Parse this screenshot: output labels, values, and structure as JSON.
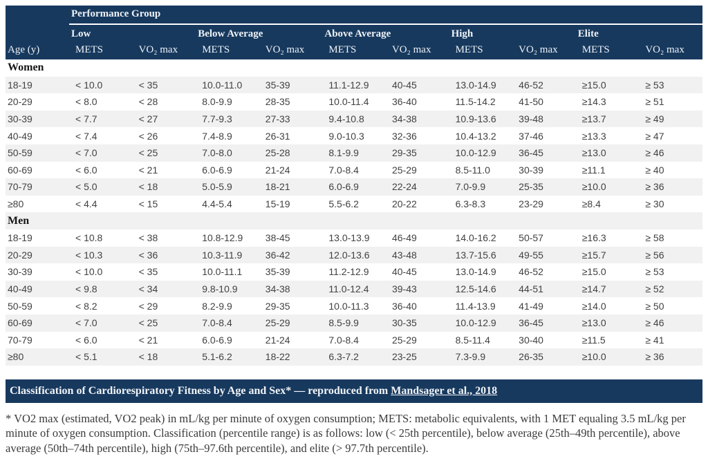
{
  "colors": {
    "navy": "#17395E",
    "stripe_gray": "#f1f1f1",
    "cell_text": "#414141"
  },
  "table": {
    "group_header": "Performance Group",
    "age_header": "Age (y)",
    "mets_label": "METS",
    "vo2_label": "VO₂ max",
    "groups": [
      {
        "label": "Low"
      },
      {
        "label": "Below Average"
      },
      {
        "label": "Above Average"
      },
      {
        "label": "High"
      },
      {
        "label": "Elite"
      }
    ],
    "sections": [
      {
        "title": "Women",
        "rows": [
          {
            "age": "18-19",
            "cells": [
              "< 10.0",
              "< 35",
              "10.0-11.0",
              "35-39",
              "11.1-12.9",
              "40-45",
              "13.0-14.9",
              "46-52",
              "≥15.0",
              "≥ 53"
            ]
          },
          {
            "age": "20-29",
            "cells": [
              "< 8.0",
              "< 28",
              "8.0-9.9",
              "28-35",
              "10.0-11.4",
              "36-40",
              "11.5-14.2",
              "41-50",
              "≥14.3",
              "≥ 51"
            ]
          },
          {
            "age": "30-39",
            "cells": [
              "< 7.7",
              "< 27",
              "7.7-9.3",
              "27-33",
              "9.4-10.8",
              "34-38",
              "10.9-13.6",
              "39-48",
              "≥13.7",
              "≥ 49"
            ]
          },
          {
            "age": "40-49",
            "cells": [
              "< 7.4",
              "< 26",
              "7.4-8.9",
              "26-31",
              "9.0-10.3",
              "32-36",
              "10.4-13.2",
              "37-46",
              "≥13.3",
              "≥ 47"
            ]
          },
          {
            "age": "50-59",
            "cells": [
              "< 7.0",
              "< 25",
              "7.0-8.0",
              "25-28",
              "8.1-9.9",
              "29-35",
              "10.0-12.9",
              "36-45",
              "≥13.0",
              "≥ 46"
            ]
          },
          {
            "age": "60-69",
            "cells": [
              "< 6.0",
              "< 21",
              "6.0-6.9",
              "21-24",
              "7.0-8.4",
              "25-29",
              "8.5-11.0",
              "30-39",
              "≥11.1",
              "≥ 40"
            ]
          },
          {
            "age": "70-79",
            "cells": [
              "< 5.0",
              "< 18",
              "5.0-5.9",
              "18-21",
              "6.0-6.9",
              "22-24",
              "7.0-9.9",
              "25-35",
              "≥10.0",
              "≥ 36"
            ]
          },
          {
            "age": "≥80",
            "cells": [
              "< 4.4",
              "< 15",
              "4.4-5.4",
              "15-19",
              "5.5-6.2",
              "20-22",
              "6.3-8.3",
              "23-29",
              "≥8.4",
              "≥ 30"
            ]
          }
        ]
      },
      {
        "title": "Men",
        "rows": [
          {
            "age": "18-19",
            "cells": [
              "< 10.8",
              "< 38",
              "10.8-12.9",
              "38-45",
              "13.0-13.9",
              "46-49",
              "14.0-16.2",
              "50-57",
              "≥16.3",
              "≥ 58"
            ]
          },
          {
            "age": "20-29",
            "cells": [
              "< 10.3",
              "< 36",
              "10.3-11.9",
              "36-42",
              "12.0-13.6",
              "43-48",
              "13.7-15.6",
              "49-55",
              "≥15.7",
              "≥ 56"
            ]
          },
          {
            "age": "30-39",
            "cells": [
              "< 10.0",
              "< 35",
              "10.0-11.1",
              "35-39",
              "11.2-12.9",
              "40-45",
              "13.0-14.9",
              "46-52",
              "≥15.0",
              "≥ 53"
            ]
          },
          {
            "age": "40-49",
            "cells": [
              "< 9.8",
              "< 34",
              "9.8-10.9",
              "34-38",
              "11.0-12.4",
              "39-43",
              "12.5-14.6",
              "44-51",
              "≥14.7",
              "≥ 52"
            ]
          },
          {
            "age": "50-59",
            "cells": [
              "< 8.2",
              "< 29",
              "8.2-9.9",
              "29-35",
              "10.0-11.3",
              "36-40",
              "11.4-13.9",
              "41-49",
              "≥14.0",
              "≥ 50"
            ]
          },
          {
            "age": "60-69",
            "cells": [
              "< 7.0",
              "< 25",
              "7.0-8.4",
              "25-29",
              "8.5-9.9",
              "30-35",
              "10.0-12.9",
              "36-45",
              "≥13.0",
              "≥ 46"
            ]
          },
          {
            "age": "70-79",
            "cells": [
              "< 6.0",
              "< 21",
              "6.0-6.9",
              "21-24",
              "7.0-8.4",
              "25-29",
              "8.5-11.4",
              "30-40",
              "≥11.5",
              "≥ 41"
            ]
          },
          {
            "age": "≥80",
            "cells": [
              "< 5.1",
              "< 18",
              "5.1-6.2",
              "18-22",
              "6.3-7.2",
              "23-25",
              "7.3-9.9",
              "26-35",
              "≥10.0",
              "≥ 36"
            ]
          }
        ]
      }
    ]
  },
  "caption": {
    "prefix": "Classification of Cardiorespiratory Fitness by Age and Sex* — reproduced from ",
    "link_text": "Mandsager et al., 2018"
  },
  "footnote": {
    "text": "* VO2 max (estimated, VO2 peak) in mL/kg per minute of oxygen consumption; METS: metabolic equivalents, with 1 MET equaling 3.5 mL/kg per minute of oxygen consumption. Classification (percentile range) is as follows: low (< 25th percentile), below average (25th–49th percentile), above average (50th–74th percentile), high (75th–97.6th percentile), and elite (> 97.7th percentile)."
  }
}
